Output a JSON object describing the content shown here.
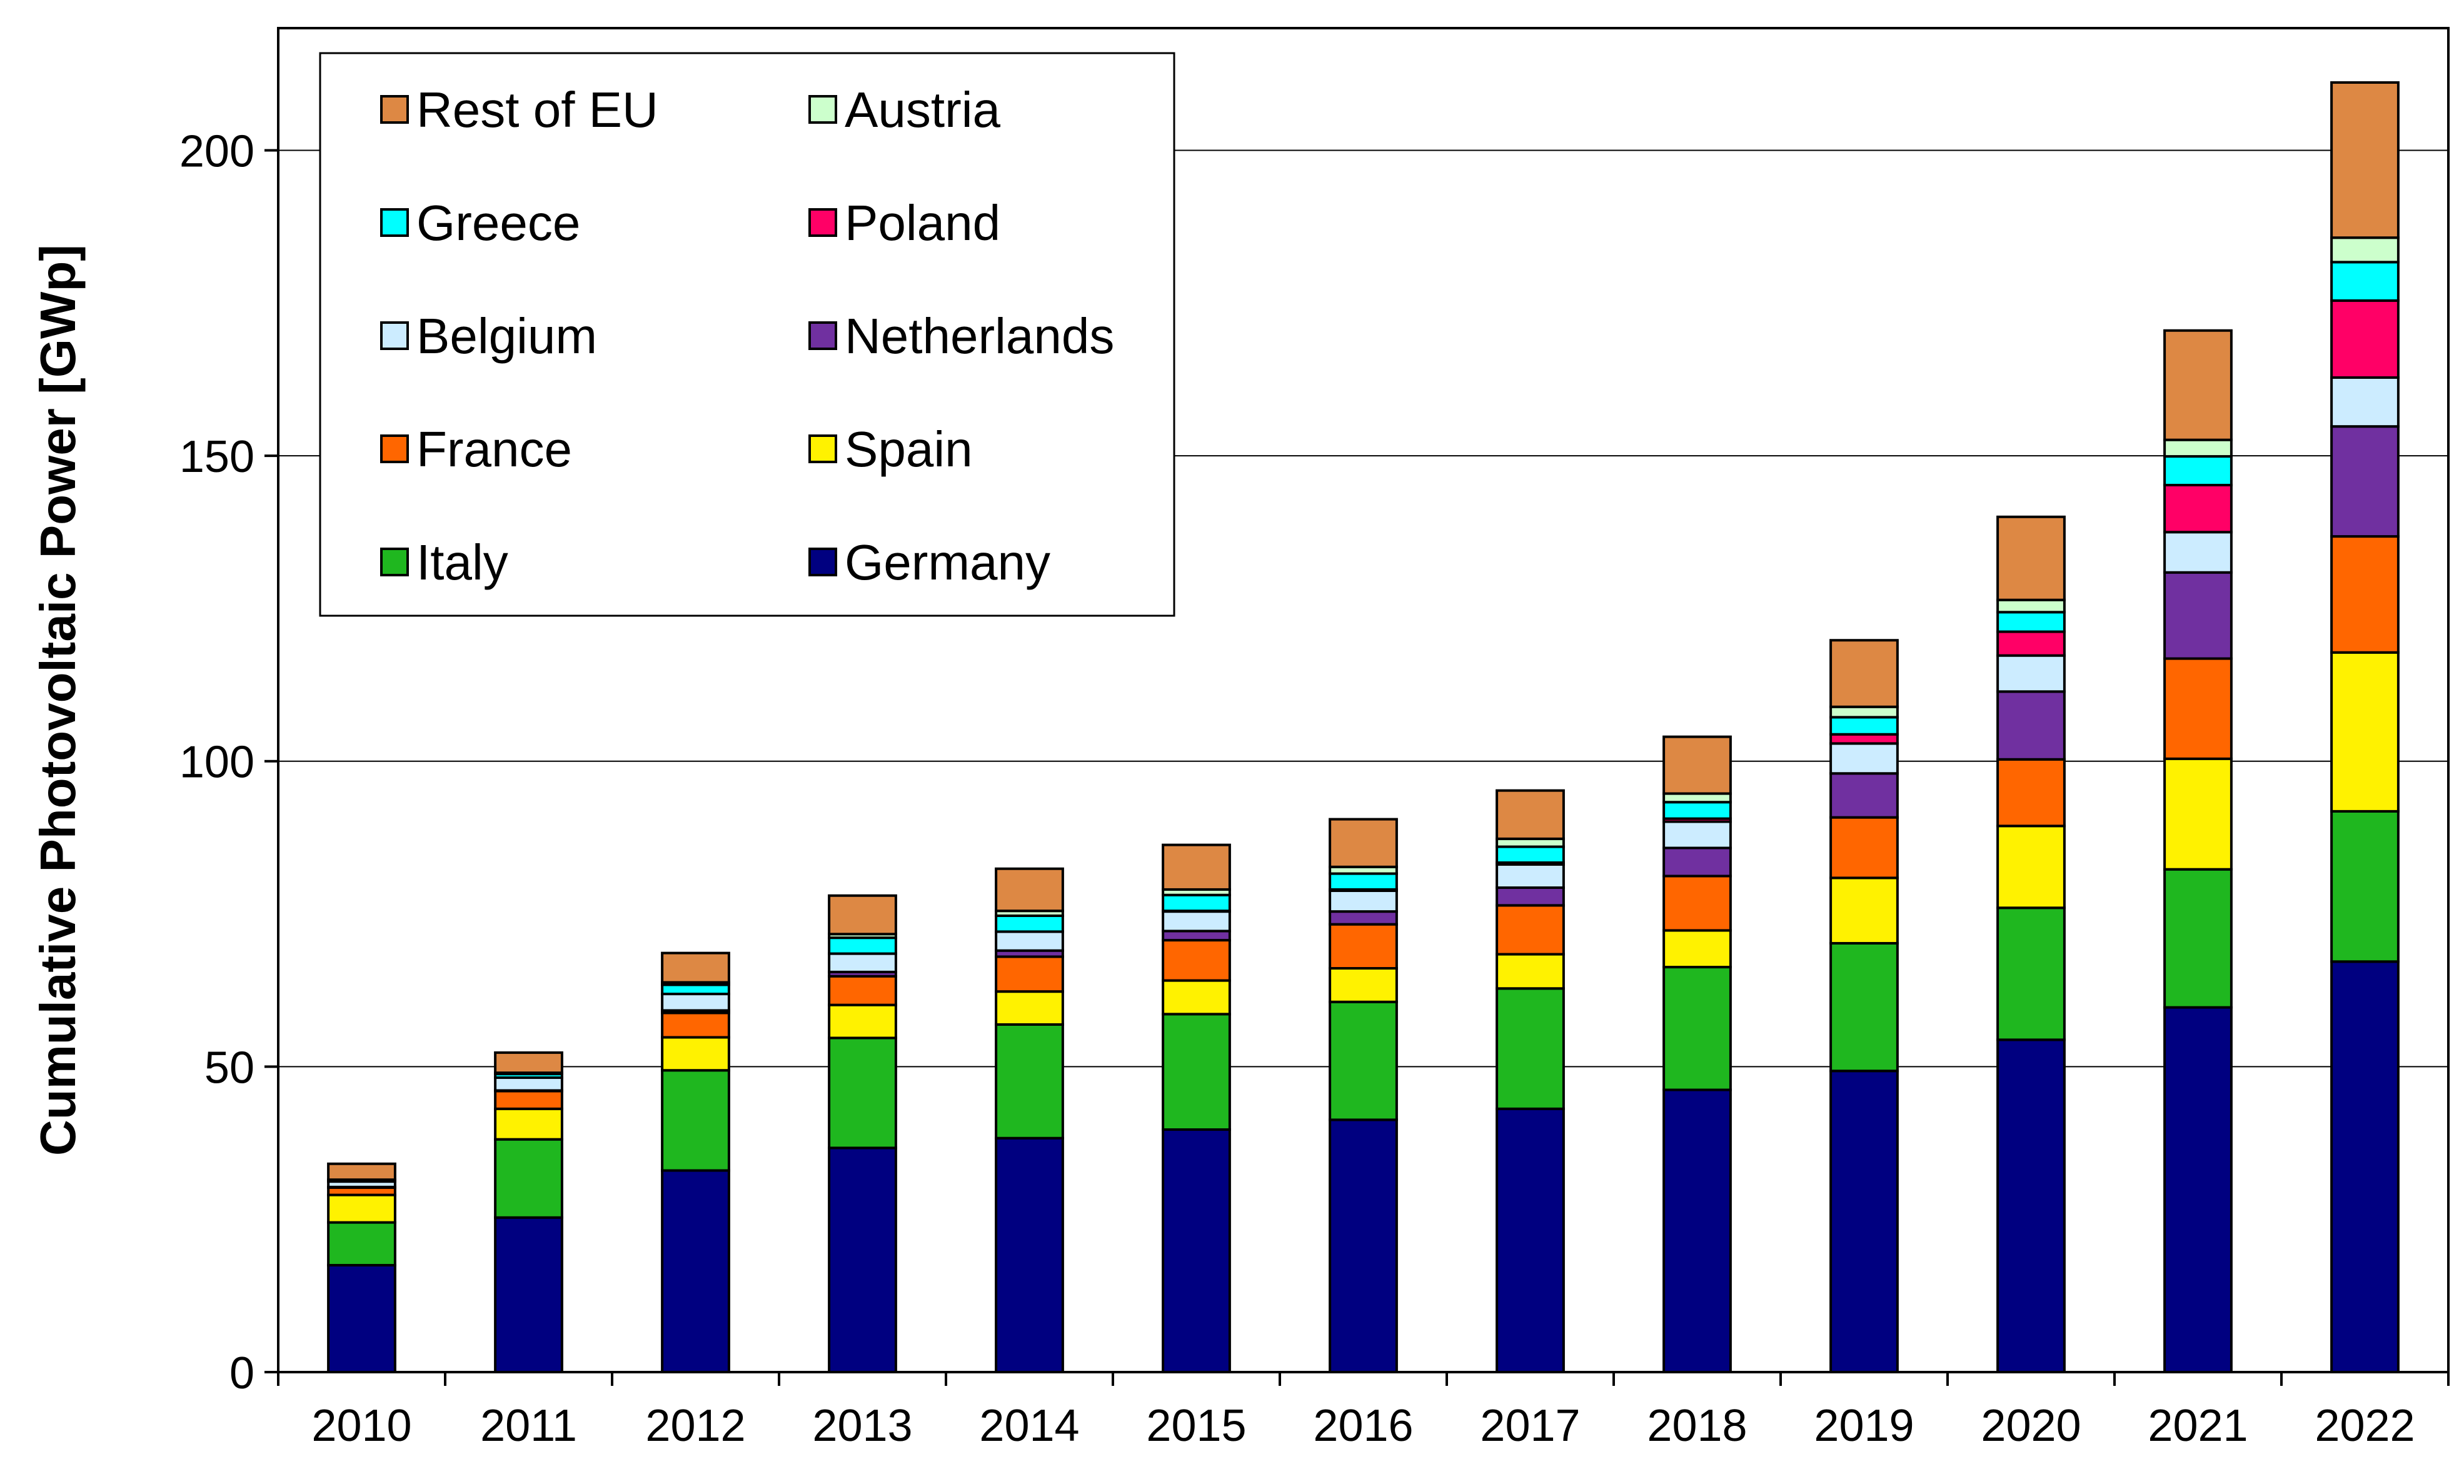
{
  "chart_data": {
    "type": "bar",
    "stacked": true,
    "title": "",
    "xlabel": "",
    "ylabel": "Cumulative Photovoltaic Power [GWp]",
    "ylim": [
      0,
      220
    ],
    "yticks": [
      0,
      50,
      100,
      150,
      200
    ],
    "grid": true,
    "legend_position": "top-left",
    "categories": [
      "2010",
      "2011",
      "2012",
      "2013",
      "2014",
      "2015",
      "2016",
      "2017",
      "2018",
      "2019",
      "2020",
      "2021",
      "2022"
    ],
    "series": [
      {
        "name": "Germany",
        "color": "#000080",
        "values": [
          17.5,
          25.3,
          33.0,
          36.7,
          38.3,
          39.7,
          41.3,
          43.1,
          46.2,
          49.3,
          54.4,
          59.7,
          67.2
        ]
      },
      {
        "name": "Italy",
        "color": "#1FB71F",
        "values": [
          7.0,
          12.8,
          16.4,
          18.0,
          18.6,
          18.9,
          19.3,
          19.7,
          20.1,
          20.9,
          21.6,
          22.6,
          24.6
        ]
      },
      {
        "name": "Spain",
        "color": "#FFF200",
        "values": [
          4.5,
          5.0,
          5.4,
          5.4,
          5.4,
          5.5,
          5.5,
          5.6,
          6.0,
          10.7,
          13.4,
          18.1,
          26.0
        ]
      },
      {
        "name": "France",
        "color": "#FF6600",
        "values": [
          1.2,
          2.9,
          4.0,
          4.7,
          5.7,
          6.6,
          7.2,
          8.0,
          8.9,
          9.9,
          10.9,
          16.4,
          19.0
        ]
      },
      {
        "name": "Netherlands",
        "color": "#7030A0",
        "values": [
          0.1,
          0.1,
          0.4,
          0.7,
          1.0,
          1.5,
          2.1,
          2.9,
          4.6,
          7.2,
          11.1,
          14.1,
          18.0
        ]
      },
      {
        "name": "Belgium",
        "color": "#CCECFF",
        "values": [
          0.9,
          2.1,
          2.7,
          3.0,
          3.1,
          3.2,
          3.4,
          3.8,
          4.3,
          4.9,
          5.9,
          6.6,
          8.0
        ]
      },
      {
        "name": "Poland",
        "color": "#FF0066",
        "values": [
          0.0,
          0.0,
          0.0,
          0.0,
          0.0,
          0.1,
          0.2,
          0.3,
          0.5,
          1.5,
          3.9,
          7.7,
          12.6
        ]
      },
      {
        "name": "Greece",
        "color": "#00FFFF",
        "values": [
          0.2,
          0.6,
          1.5,
          2.6,
          2.6,
          2.6,
          2.6,
          2.6,
          2.7,
          2.8,
          3.2,
          4.7,
          6.3
        ]
      },
      {
        "name": "Austria",
        "color": "#CCFFCC",
        "values": [
          0.1,
          0.2,
          0.4,
          0.6,
          0.8,
          0.9,
          1.1,
          1.3,
          1.4,
          1.7,
          2.0,
          2.7,
          4.0
        ]
      },
      {
        "name": "Rest of EU",
        "color": "#DD8844",
        "values": [
          2.6,
          3.3,
          4.8,
          6.3,
          6.9,
          7.3,
          7.8,
          7.9,
          9.3,
          10.9,
          13.6,
          17.9,
          25.4
        ]
      }
    ],
    "legend_order": [
      "Rest of EU",
      "Austria",
      "Greece",
      "Poland",
      "Belgium",
      "Netherlands",
      "France",
      "Spain",
      "Italy",
      "Germany"
    ]
  }
}
